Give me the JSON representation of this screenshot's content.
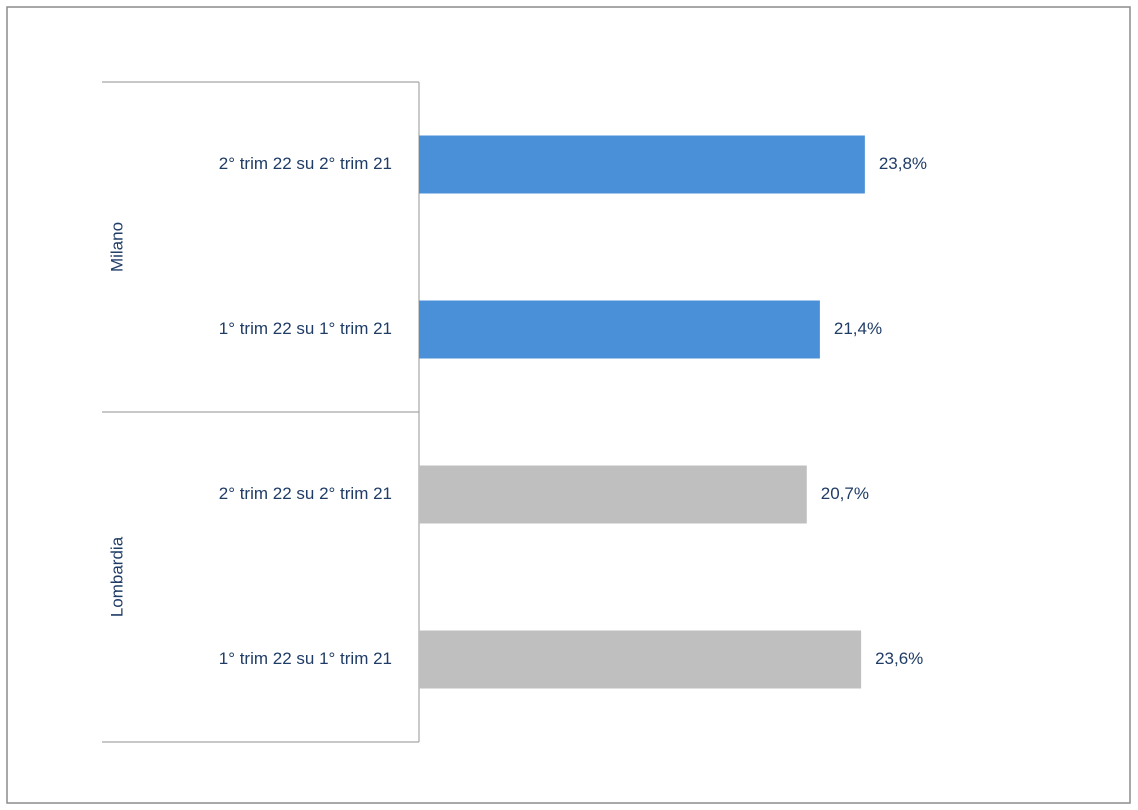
{
  "chart_data": {
    "type": "bar",
    "orientation": "horizontal",
    "xlim": [
      0,
      30
    ],
    "groups": [
      {
        "name": "Milano",
        "color": "#4a90d9",
        "categories": [
          "2° trim 22 su 2° trim 21",
          "1° trim 22 su 1° trim 21"
        ],
        "values": [
          23.8,
          21.4
        ],
        "value_labels": [
          "23,8%",
          "21,4%"
        ]
      },
      {
        "name": "Lombardia",
        "color": "#bfbfbf",
        "categories": [
          "2° trim 22 su 2° trim 21",
          "1° trim 22 su 1° trim 21"
        ],
        "values": [
          20.7,
          23.6
        ],
        "value_labels": [
          "20,7%",
          "23,6%"
        ]
      }
    ]
  }
}
